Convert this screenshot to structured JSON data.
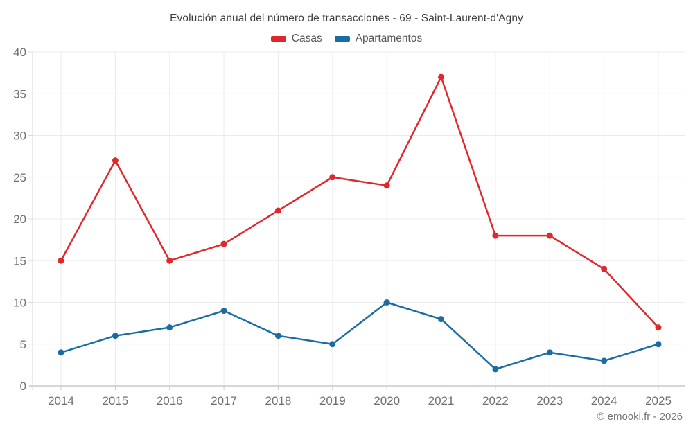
{
  "title": "Evolución anual del número de transacciones - 69 - Saint-Laurent-d'Agny",
  "attribution": "© emooki.fr - 2026",
  "colors": {
    "title_text": "#3f3f3f",
    "axis_text": "#6f6f6f",
    "legend_text": "#575757",
    "grid_line": "#ebebeb",
    "axis_line": "#c9c9c9",
    "background": "#ffffff",
    "casas_red": "#e0282c",
    "apartamentos_blue": "#1a6ca4"
  },
  "chart_data": {
    "type": "line",
    "title": "Evolución anual del número de transacciones - 69 - Saint-Laurent-d'Agny",
    "categories": [
      "2014",
      "2015",
      "2016",
      "2017",
      "2018",
      "2019",
      "2020",
      "2021",
      "2022",
      "2023",
      "2024",
      "2025"
    ],
    "series": [
      {
        "name": "Casas",
        "color": "#e0282c",
        "values": [
          15,
          27,
          15,
          17,
          21,
          25,
          24,
          37,
          18,
          18,
          14,
          7
        ]
      },
      {
        "name": "Apartamentos",
        "color": "#1a6ca4",
        "values": [
          4,
          6,
          7,
          9,
          6,
          5,
          10,
          8,
          2,
          4,
          3,
          5
        ]
      }
    ],
    "xlabel": "",
    "ylabel": "",
    "ylim": [
      0,
      40
    ],
    "ytick_step": 5,
    "grid": true,
    "legend_position": "top",
    "markers": true
  }
}
